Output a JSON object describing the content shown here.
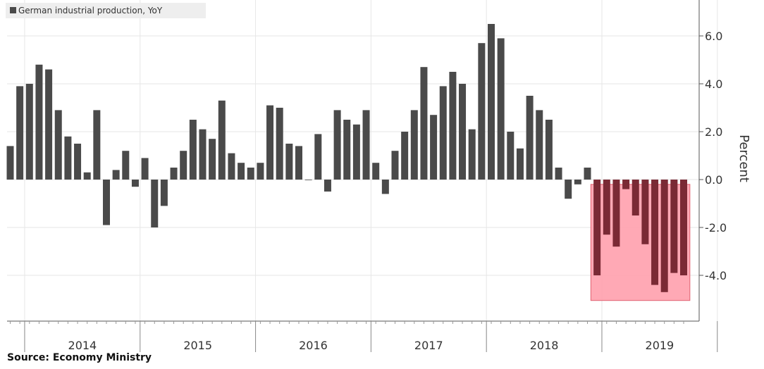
{
  "colors": {
    "bar": "#4a4a4a",
    "bar_highlight": "#7a2a35",
    "highlight_fill": "#ff9aa8",
    "highlight_stroke": "#e06070",
    "grid": "#e6e6e6",
    "axis": "#555555",
    "legend_bg": "#eeeeee"
  },
  "chart_data": {
    "type": "bar",
    "title": "",
    "legend": [
      "German industrial production, YoY"
    ],
    "legend_placement": "top-left",
    "ylabel": "Percent",
    "xlabel": "",
    "ylim": [
      -5.8,
      7.5
    ],
    "y_ticks": [
      {
        "value": 6,
        "label": "6.0"
      },
      {
        "value": 4,
        "label": "4.0"
      },
      {
        "value": 2,
        "label": "2.0"
      },
      {
        "value": 0,
        "label": "0.0"
      },
      {
        "value": -2,
        "label": "-2.0"
      },
      {
        "value": -4,
        "label": "-4.0"
      }
    ],
    "grid": true,
    "x_start": "2013-11",
    "year_labels": [
      "2014",
      "2015",
      "2016",
      "2017",
      "2018",
      "2019"
    ],
    "series": [
      {
        "name": "German industrial production, YoY",
        "values": [
          1.4,
          3.9,
          4.0,
          4.8,
          4.6,
          2.9,
          1.8,
          1.5,
          0.3,
          2.9,
          -1.9,
          0.4,
          1.2,
          -0.3,
          0.9,
          -2.0,
          -1.1,
          0.5,
          1.2,
          2.5,
          2.1,
          1.7,
          3.3,
          1.1,
          0.7,
          0.5,
          0.7,
          3.1,
          3.0,
          1.5,
          1.4,
          0.0,
          1.9,
          -0.5,
          2.9,
          2.5,
          2.3,
          2.9,
          0.7,
          -0.6,
          1.2,
          2.0,
          2.9,
          4.7,
          2.7,
          3.9,
          4.5,
          4.0,
          2.1,
          5.7,
          6.5,
          5.9,
          2.0,
          1.3,
          3.5,
          2.9,
          2.5,
          0.5,
          -0.8,
          -0.2,
          0.5,
          -4.0,
          -2.3,
          -2.8,
          -0.4,
          -1.5,
          -2.7,
          -4.4,
          -4.7,
          -3.9,
          -4.0
        ]
      }
    ],
    "highlight_from_index": 61,
    "annotation": "Source: Economy Ministry"
  }
}
